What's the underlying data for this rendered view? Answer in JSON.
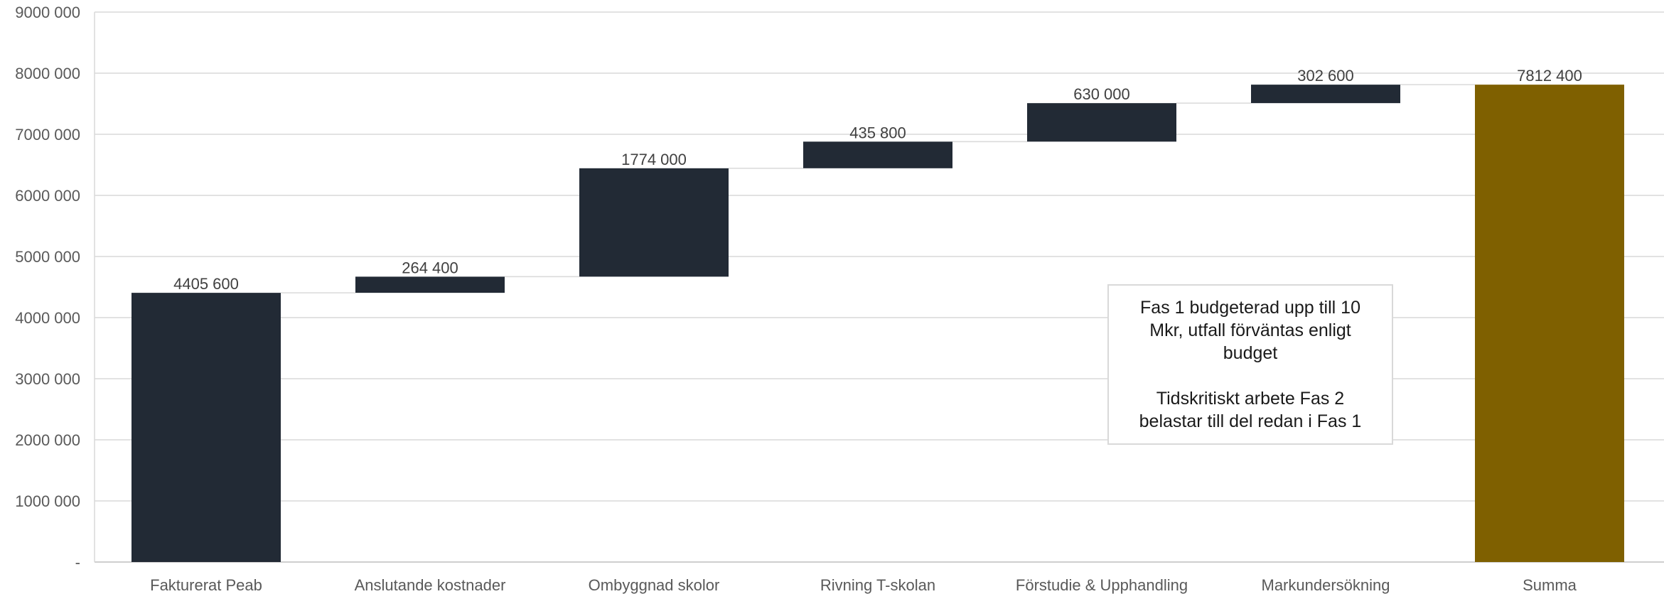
{
  "chart_data": {
    "type": "bar",
    "subtype": "waterfall",
    "categories": [
      "Fakturerat Peab",
      "Anslutande kostnader",
      "Ombyggnad skolor",
      "Rivning T-skolan",
      "Förstudie & Upphandling",
      "Markundersökning",
      "Summa"
    ],
    "values": [
      4405600,
      264400,
      1774000,
      435800,
      630000,
      302600,
      7812400
    ],
    "value_labels": [
      "4405 600",
      "264 400",
      "1774 000",
      "435 800",
      "630 000",
      "302 600",
      "7812 400"
    ],
    "is_total": [
      false,
      false,
      false,
      false,
      false,
      false,
      true
    ],
    "ylim": [
      0,
      9000000
    ],
    "yticks": [
      0,
      1000000,
      2000000,
      3000000,
      4000000,
      5000000,
      6000000,
      7000000,
      8000000,
      9000000
    ],
    "ytick_labels": [
      "-",
      "1000 000",
      "2000 000",
      "3000 000",
      "4000 000",
      "5000 000",
      "6000 000",
      "7000 000",
      "8000 000",
      "9000 000"
    ],
    "grid": true,
    "legend": "none",
    "colors": {
      "bar": "#222a35",
      "total": "#7f6000",
      "grid": "#d9d9d9",
      "connector": "#d9d9d9"
    }
  },
  "annotation": {
    "paragraph1": [
      "Fas 1 budgeterad upp till 10",
      "Mkr, utfall förväntas enligt",
      "budget"
    ],
    "paragraph2": [
      "Tidskritiskt arbete Fas 2",
      "belastar till del redan i Fas 1"
    ]
  }
}
